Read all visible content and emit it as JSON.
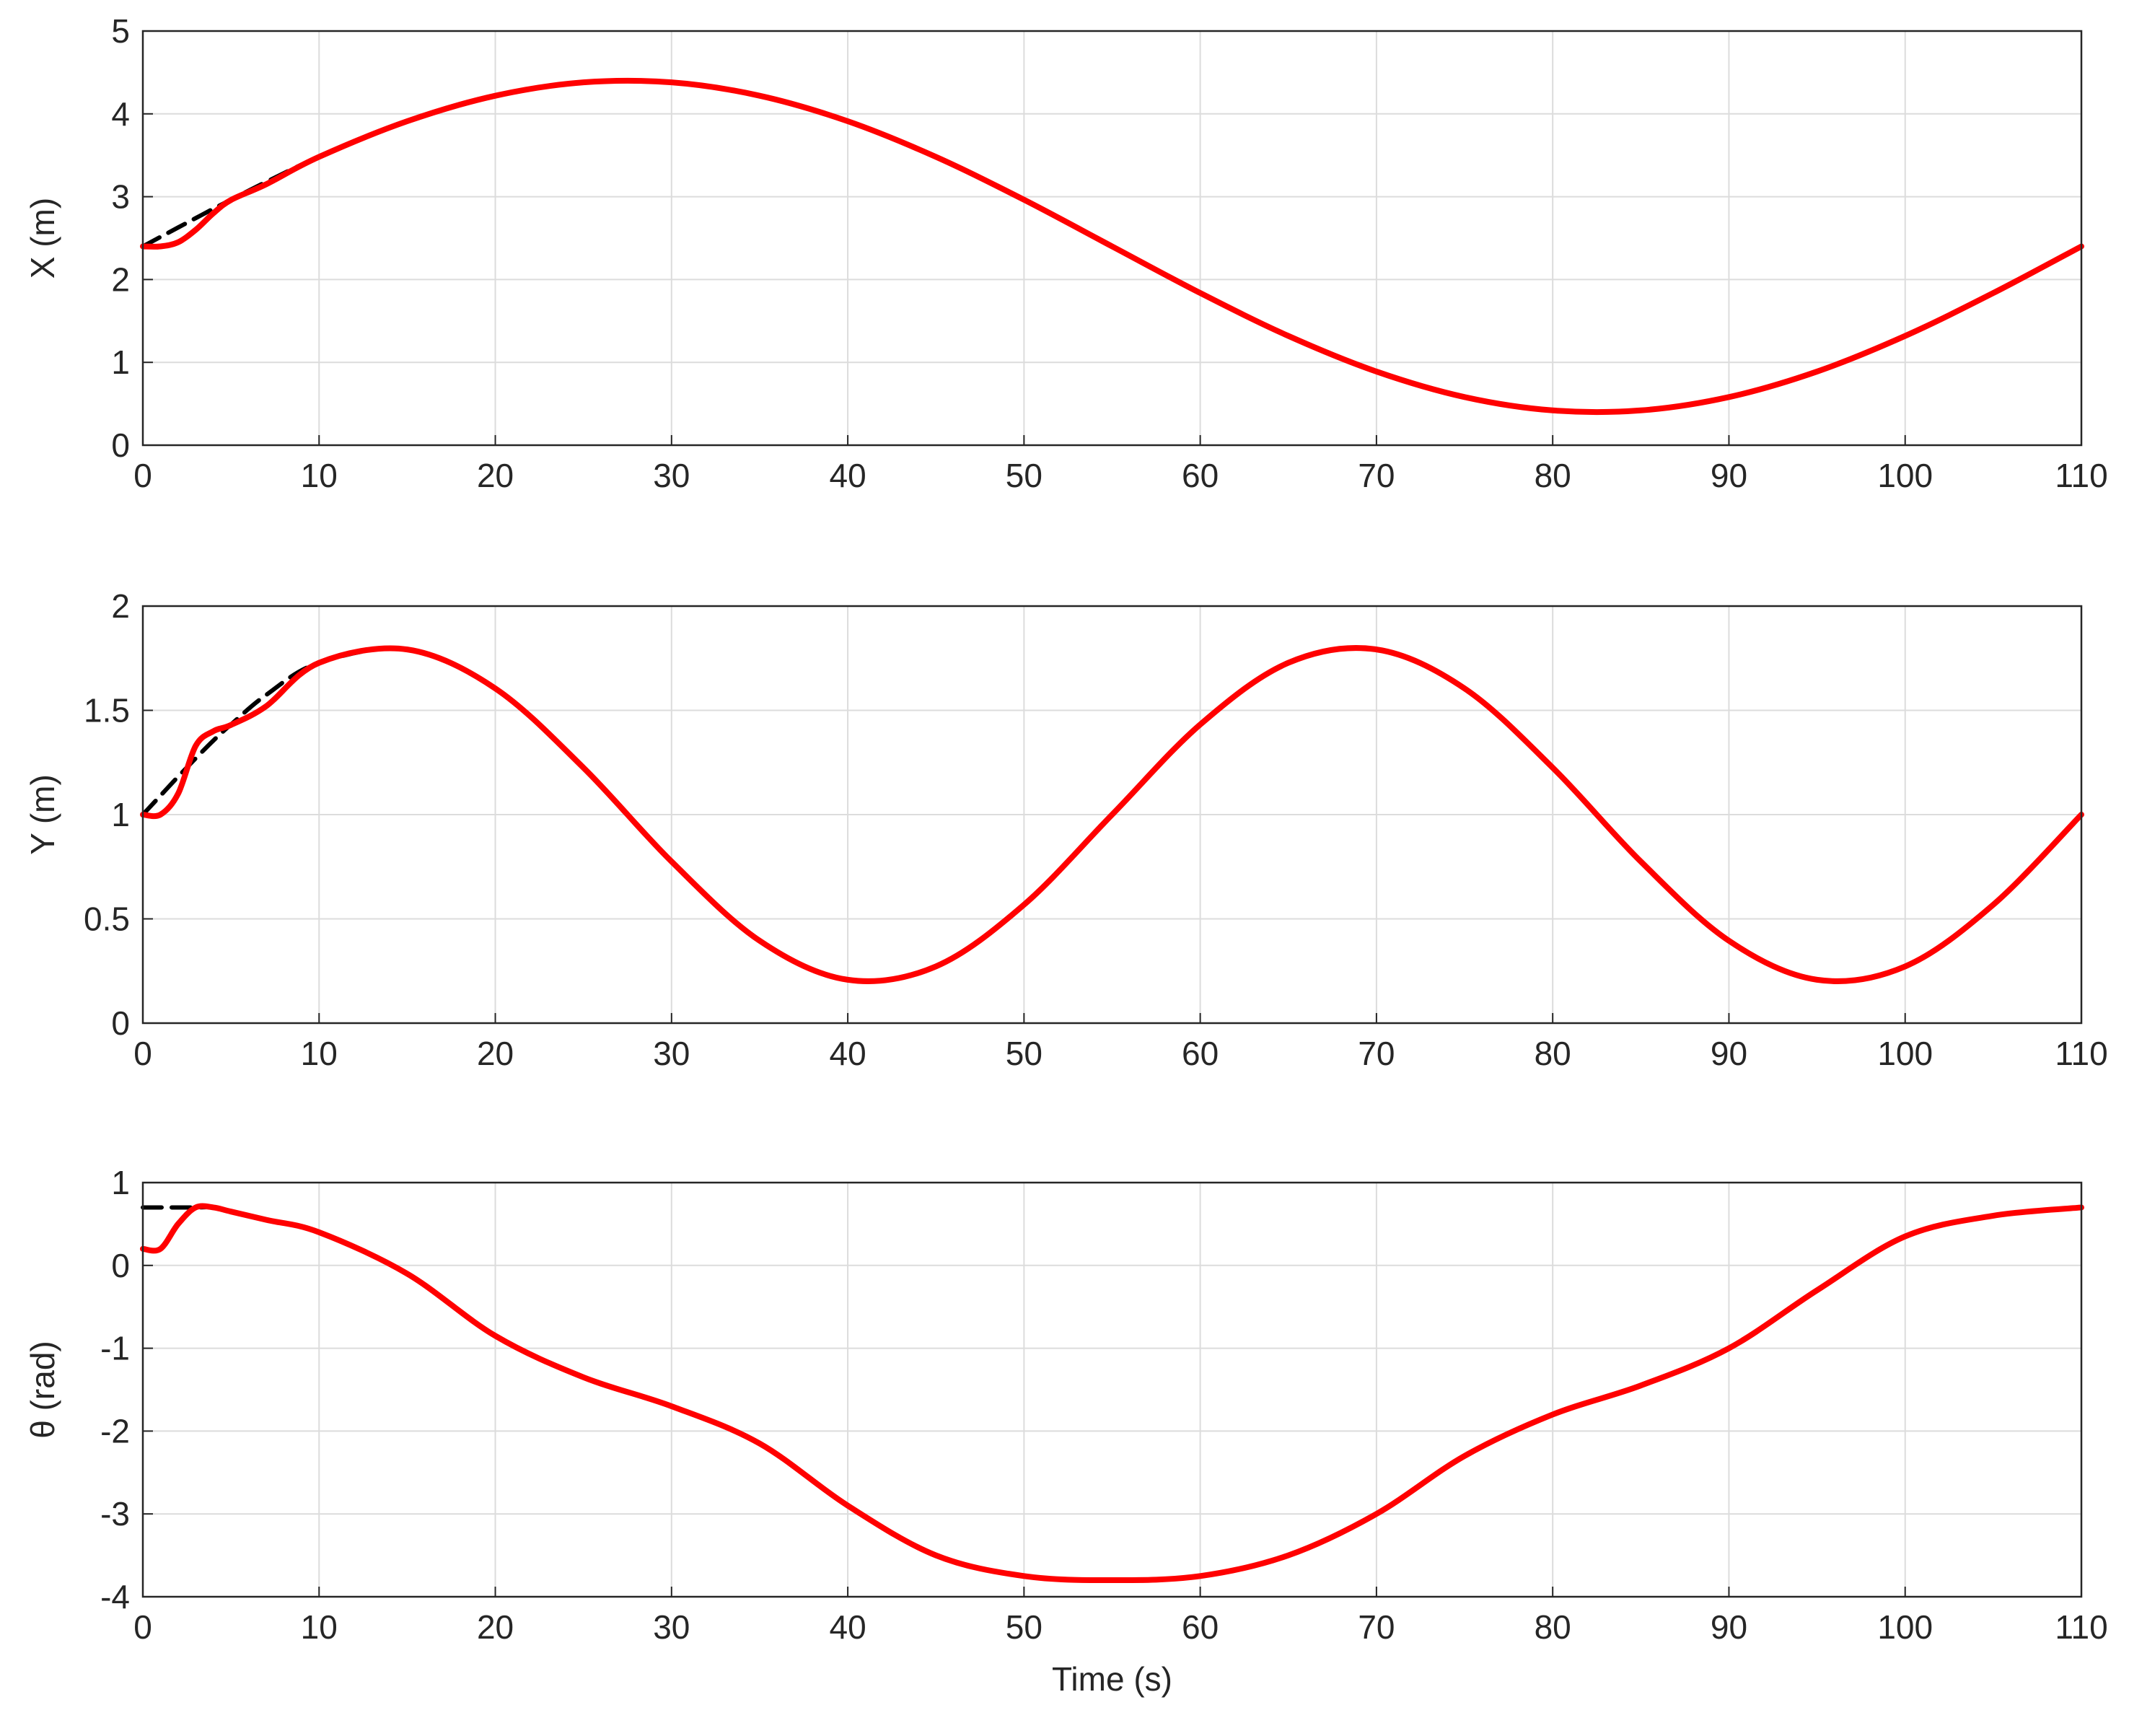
{
  "chart_data": [
    {
      "type": "line",
      "ylabel": "X (m)",
      "grid": true,
      "x": [
        0,
        1,
        2,
        3,
        4,
        5,
        7,
        10,
        15,
        20,
        25,
        30,
        35,
        40,
        45,
        50,
        55,
        60,
        65,
        70,
        75,
        80,
        85,
        90,
        95,
        100,
        105,
        110
      ],
      "xlim": [
        0,
        110
      ],
      "xticks": [
        0,
        10,
        20,
        30,
        40,
        50,
        60,
        70,
        80,
        90,
        100,
        110
      ],
      "ylim": [
        0,
        5
      ],
      "yticks": [
        0,
        1,
        2,
        3,
        4,
        5
      ],
      "series": [
        {
          "color": "#000000",
          "dash": true,
          "values": [
            2.4,
            2.514,
            2.628,
            2.741,
            2.854,
            2.963,
            3.178,
            3.481,
            3.911,
            4.219,
            4.38,
            4.38,
            4.219,
            3.911,
            3.481,
            2.963,
            2.4,
            1.837,
            1.319,
            0.889,
            0.581,
            0.42,
            0.42,
            0.581,
            0.889,
            1.319,
            1.837,
            2.4
          ]
        },
        {
          "color": "#ff0000",
          "values": [
            2.4,
            2.4,
            2.45,
            2.6,
            2.8,
            2.96,
            3.15,
            3.481,
            3.911,
            4.219,
            4.38,
            4.38,
            4.219,
            3.911,
            3.481,
            2.963,
            2.4,
            1.837,
            1.319,
            0.889,
            0.581,
            0.42,
            0.42,
            0.581,
            0.889,
            1.319,
            1.837,
            2.4
          ]
        }
      ]
    },
    {
      "type": "line",
      "ylabel": "Y (m)",
      "grid": true,
      "x": [
        0,
        1,
        2,
        3,
        4,
        5,
        7,
        10,
        15,
        20,
        25,
        30,
        35,
        40,
        45,
        50,
        55,
        60,
        65,
        70,
        75,
        80,
        85,
        90,
        95,
        100,
        105,
        110
      ],
      "xlim": [
        0,
        110
      ],
      "xticks": [
        0,
        10,
        20,
        30,
        40,
        50,
        60,
        70,
        80,
        90,
        100,
        110
      ],
      "ylim": [
        0,
        2
      ],
      "yticks": [
        0,
        0.5,
        1,
        1.5,
        2
      ],
      "series": [
        {
          "color": "#000000",
          "dash": true,
          "values": [
            1,
            1.091,
            1.182,
            1.27,
            1.355,
            1.432,
            1.574,
            1.728,
            1.792,
            1.605,
            1.225,
            0.775,
            0.395,
            0.208,
            0.272,
            0.568,
            1,
            1.432,
            1.728,
            1.792,
            1.605,
            1.225,
            0.775,
            0.395,
            0.208,
            0.272,
            0.568,
            1
          ]
        },
        {
          "color": "#ff0000",
          "values": [
            1,
            1.0,
            1.1,
            1.33,
            1.4,
            1.43,
            1.52,
            1.728,
            1.792,
            1.605,
            1.225,
            0.775,
            0.395,
            0.208,
            0.272,
            0.568,
            1,
            1.432,
            1.728,
            1.792,
            1.605,
            1.225,
            0.775,
            0.395,
            0.208,
            0.272,
            0.568,
            1
          ]
        }
      ]
    },
    {
      "type": "line",
      "ylabel": "θ (rad)",
      "xlabel": "Time (s)",
      "grid": true,
      "x": [
        0,
        1,
        2,
        3,
        4,
        5,
        7,
        10,
        15,
        20,
        25,
        30,
        35,
        40,
        45,
        50,
        55,
        60,
        65,
        70,
        75,
        80,
        85,
        90,
        95,
        100,
        105,
        110
      ],
      "xlim": [
        0,
        110
      ],
      "xticks": [
        0,
        10,
        20,
        30,
        40,
        50,
        60,
        70,
        80,
        90,
        100,
        110
      ],
      "ylim": [
        -4,
        1
      ],
      "yticks": [
        -4,
        -3,
        -2,
        -1,
        0,
        1
      ],
      "series": [
        {
          "color": "#000000",
          "dash": true,
          "values": [
            0.7,
            0.7,
            0.7,
            0.7,
            0.7,
            0.65,
            0.55,
            0.4,
            -0.1,
            -0.85,
            -1.35,
            -1.7,
            -2.15,
            -2.9,
            -3.5,
            -3.75,
            -3.8,
            -3.75,
            -3.5,
            -3.0,
            -2.3,
            -1.8,
            -1.45,
            -1.0,
            -0.3,
            0.35,
            0.6,
            0.7
          ]
        },
        {
          "color": "#ff0000",
          "values": [
            0.2,
            0.2,
            0.5,
            0.7,
            0.7,
            0.65,
            0.55,
            0.4,
            -0.1,
            -0.85,
            -1.35,
            -1.7,
            -2.15,
            -2.9,
            -3.5,
            -3.75,
            -3.8,
            -3.75,
            -3.5,
            -3.0,
            -2.3,
            -1.8,
            -1.45,
            -1.0,
            -0.3,
            0.35,
            0.6,
            0.7
          ]
        }
      ]
    }
  ]
}
